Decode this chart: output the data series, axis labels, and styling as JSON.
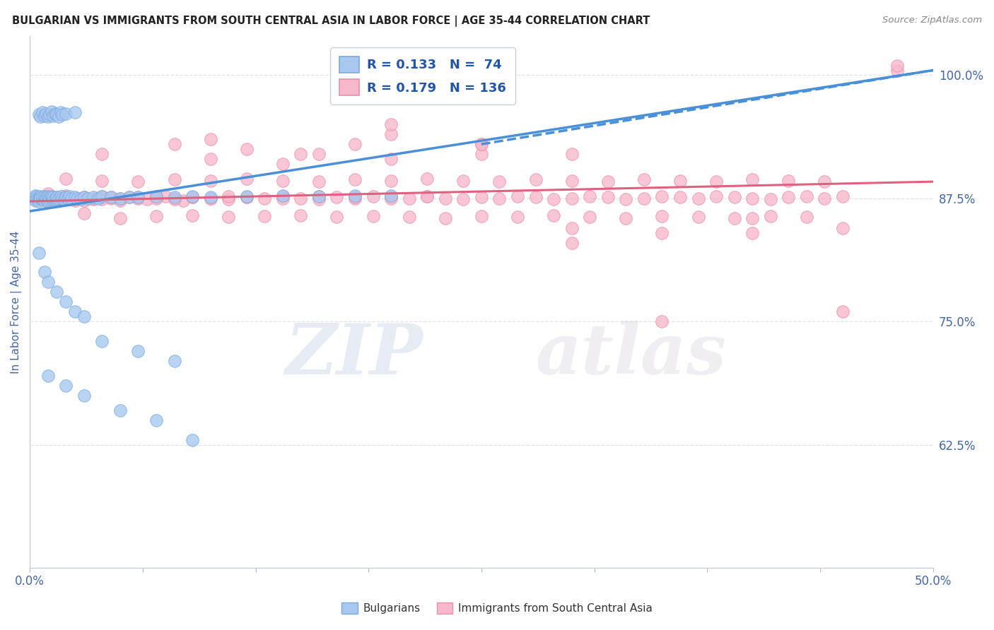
{
  "title": "BULGARIAN VS IMMIGRANTS FROM SOUTH CENTRAL ASIA IN LABOR FORCE | AGE 35-44 CORRELATION CHART",
  "source": "Source: ZipAtlas.com",
  "ylabel": "In Labor Force | Age 35-44",
  "xlim": [
    0.0,
    0.5
  ],
  "ylim": [
    0.5,
    1.04
  ],
  "yticks": [
    0.625,
    0.75,
    0.875,
    1.0
  ],
  "ytick_labels": [
    "62.5%",
    "75.0%",
    "87.5%",
    "100.0%"
  ],
  "xticks": [
    0.0,
    0.0625,
    0.125,
    0.1875,
    0.25,
    0.3125,
    0.375,
    0.4375,
    0.5
  ],
  "xtick_labels": [
    "0.0%",
    "",
    "",
    "",
    "",
    "",
    "",
    "",
    "50.0%"
  ],
  "bulgarian_color": "#a8c8f0",
  "bulgarian_edge": "#7aaae0",
  "immigrant_color": "#f8b8cc",
  "immigrant_edge": "#e890a8",
  "trend_bulgarian_color": "#4a90d9",
  "trend_immigrant_color": "#e06080",
  "R_bulgarian": 0.133,
  "N_bulgarian": 74,
  "R_immigrant": 0.179,
  "N_immigrant": 136,
  "legend_label_color": "#2255aa",
  "legend_value_color": "#3377cc",
  "tick_color": "#4466aa",
  "grid_color": "#d8dde8",
  "background_color": "#ffffff",
  "watermark_zip_color": "#b0c0dc",
  "watermark_atlas_color": "#c8bcd0",
  "trend_b_x0": 0.0,
  "trend_b_y0": 0.862,
  "trend_b_x1": 0.5,
  "trend_b_y1": 1.005,
  "trend_i_x0": 0.0,
  "trend_i_y0": 0.872,
  "trend_i_x1": 0.5,
  "trend_i_y1": 0.892,
  "trend_b_dashed_x0": 0.25,
  "trend_b_dashed_y0": 0.93,
  "trend_b_dashed_x1": 0.5,
  "trend_b_dashed_y1": 1.005,
  "bulg_cluster_x": [
    0.002,
    0.003,
    0.003,
    0.004,
    0.004,
    0.005,
    0.005,
    0.005,
    0.006,
    0.006,
    0.007,
    0.007,
    0.008,
    0.008,
    0.008,
    0.009,
    0.009,
    0.01,
    0.01,
    0.01,
    0.011,
    0.011,
    0.012,
    0.012,
    0.013,
    0.013,
    0.014,
    0.015,
    0.015,
    0.016,
    0.017,
    0.018,
    0.019,
    0.02,
    0.021,
    0.022,
    0.023,
    0.025,
    0.026,
    0.028,
    0.03,
    0.032,
    0.035,
    0.038,
    0.04,
    0.045,
    0.05,
    0.055,
    0.06,
    0.07,
    0.08,
    0.09,
    0.1,
    0.12,
    0.14,
    0.16,
    0.18,
    0.2
  ],
  "bulg_cluster_y": [
    0.875,
    0.878,
    0.873,
    0.877,
    0.874,
    0.876,
    0.874,
    0.872,
    0.877,
    0.875,
    0.874,
    0.876,
    0.875,
    0.873,
    0.877,
    0.876,
    0.874,
    0.875,
    0.873,
    0.877,
    0.876,
    0.874,
    0.875,
    0.877,
    0.874,
    0.876,
    0.875,
    0.874,
    0.876,
    0.875,
    0.877,
    0.875,
    0.874,
    0.876,
    0.875,
    0.877,
    0.875,
    0.876,
    0.875,
    0.874,
    0.876,
    0.875,
    0.876,
    0.875,
    0.877,
    0.876,
    0.875,
    0.876,
    0.876,
    0.877,
    0.876,
    0.877,
    0.876,
    0.877,
    0.878,
    0.877,
    0.878,
    0.878
  ],
  "bulg_high_x": [
    0.005,
    0.006,
    0.007,
    0.008,
    0.009,
    0.01,
    0.011,
    0.012,
    0.013,
    0.014,
    0.015,
    0.016,
    0.017,
    0.018,
    0.02,
    0.025
  ],
  "bulg_high_y": [
    0.96,
    0.958,
    0.962,
    0.959,
    0.961,
    0.958,
    0.96,
    0.963,
    0.959,
    0.961,
    0.96,
    0.958,
    0.962,
    0.96,
    0.961,
    0.962
  ],
  "bulg_low_x": [
    0.005,
    0.008,
    0.01,
    0.015,
    0.02,
    0.025,
    0.03,
    0.04,
    0.06,
    0.08,
    0.01,
    0.02,
    0.03,
    0.05,
    0.07,
    0.09
  ],
  "bulg_low_y": [
    0.82,
    0.8,
    0.79,
    0.78,
    0.77,
    0.76,
    0.755,
    0.73,
    0.72,
    0.71,
    0.695,
    0.685,
    0.675,
    0.66,
    0.65,
    0.63
  ],
  "immig_main_x": [
    0.01,
    0.015,
    0.02,
    0.025,
    0.03,
    0.035,
    0.04,
    0.045,
    0.05,
    0.055,
    0.06,
    0.065,
    0.07,
    0.075,
    0.08,
    0.085,
    0.09,
    0.1,
    0.11,
    0.12,
    0.13,
    0.14,
    0.15,
    0.16,
    0.17,
    0.18,
    0.19,
    0.2,
    0.21,
    0.22,
    0.23,
    0.24,
    0.25,
    0.26,
    0.27,
    0.28,
    0.29,
    0.3,
    0.31,
    0.32,
    0.33,
    0.34,
    0.35,
    0.36,
    0.37,
    0.38,
    0.39,
    0.4,
    0.41,
    0.42,
    0.43,
    0.44,
    0.45,
    0.03,
    0.05,
    0.07,
    0.09,
    0.11,
    0.13,
    0.15,
    0.17,
    0.19,
    0.21,
    0.23,
    0.25,
    0.27,
    0.29,
    0.31,
    0.33,
    0.35,
    0.37,
    0.39,
    0.41,
    0.43,
    0.02,
    0.04,
    0.06,
    0.08,
    0.1,
    0.12,
    0.14,
    0.16,
    0.18,
    0.2,
    0.22,
    0.24,
    0.26,
    0.28,
    0.3,
    0.32,
    0.34,
    0.36,
    0.38,
    0.4,
    0.42,
    0.44,
    0.01,
    0.02,
    0.03,
    0.04,
    0.005,
    0.006,
    0.007,
    0.008,
    0.009,
    0.01,
    0.011,
    0.012,
    0.013,
    0.014,
    0.015,
    0.016,
    0.017,
    0.018,
    0.019,
    0.02,
    0.025,
    0.03,
    0.035,
    0.04,
    0.045,
    0.05,
    0.06,
    0.07,
    0.08,
    0.09,
    0.1,
    0.11,
    0.12,
    0.14,
    0.16,
    0.18,
    0.2,
    0.22,
    0.48
  ],
  "immig_main_y": [
    0.88,
    0.875,
    0.878,
    0.873,
    0.876,
    0.874,
    0.877,
    0.875,
    0.873,
    0.876,
    0.875,
    0.874,
    0.876,
    0.877,
    0.875,
    0.873,
    0.876,
    0.875,
    0.874,
    0.876,
    0.875,
    0.877,
    0.875,
    0.874,
    0.876,
    0.875,
    0.877,
    0.876,
    0.875,
    0.877,
    0.875,
    0.874,
    0.876,
    0.875,
    0.877,
    0.876,
    0.874,
    0.875,
    0.877,
    0.876,
    0.874,
    0.875,
    0.877,
    0.876,
    0.875,
    0.877,
    0.876,
    0.875,
    0.874,
    0.876,
    0.877,
    0.875,
    0.877,
    0.86,
    0.855,
    0.857,
    0.858,
    0.856,
    0.857,
    0.858,
    0.856,
    0.857,
    0.856,
    0.855,
    0.857,
    0.856,
    0.858,
    0.856,
    0.855,
    0.857,
    0.856,
    0.855,
    0.857,
    0.856,
    0.895,
    0.893,
    0.892,
    0.894,
    0.893,
    0.895,
    0.893,
    0.892,
    0.894,
    0.893,
    0.895,
    0.893,
    0.892,
    0.894,
    0.893,
    0.892,
    0.894,
    0.893,
    0.892,
    0.894,
    0.893,
    0.892,
    0.874,
    0.875,
    0.873,
    0.876,
    0.875,
    0.874,
    0.876,
    0.875,
    0.873,
    0.876,
    0.875,
    0.874,
    0.876,
    0.875,
    0.874,
    0.876,
    0.875,
    0.874,
    0.876,
    0.875,
    0.874,
    0.876,
    0.875,
    0.874,
    0.876,
    0.875,
    0.876,
    0.875,
    0.874,
    0.876,
    0.875,
    0.877,
    0.876,
    0.875,
    0.877,
    0.876,
    0.875,
    0.877,
    1.005
  ],
  "immig_scatter_x": [
    0.04,
    0.08,
    0.1,
    0.12,
    0.14,
    0.16,
    0.18,
    0.2,
    0.25,
    0.3,
    0.35,
    0.4,
    0.45,
    0.3,
    0.25,
    0.2,
    0.35,
    0.4,
    0.45,
    0.1,
    0.15,
    0.2,
    0.25,
    0.3,
    0.48
  ],
  "immig_scatter_y": [
    0.92,
    0.93,
    0.915,
    0.925,
    0.91,
    0.92,
    0.93,
    0.915,
    0.92,
    0.845,
    0.84,
    0.855,
    0.845,
    0.83,
    0.93,
    0.94,
    0.75,
    0.84,
    0.76,
    0.935,
    0.92,
    0.95,
    0.93,
    0.92,
    1.01
  ]
}
